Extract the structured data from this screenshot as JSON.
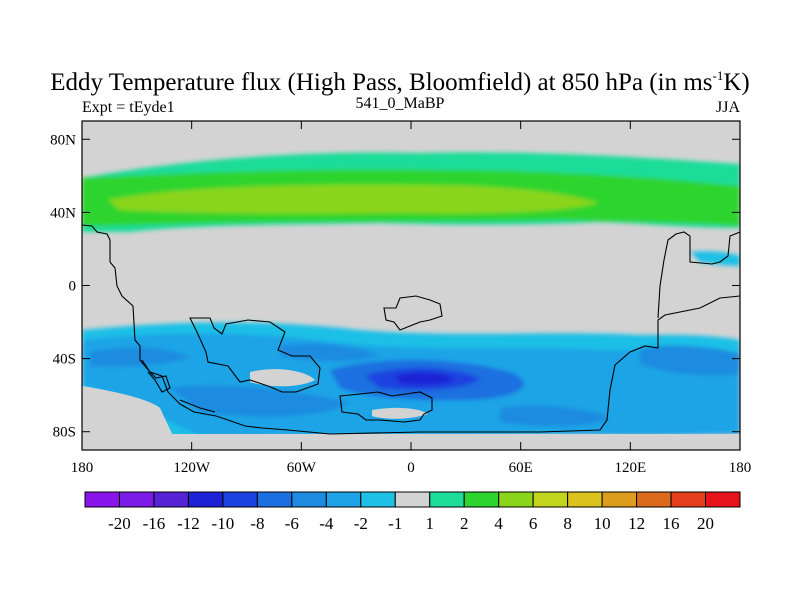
{
  "title": {
    "main": "Eddy Temperature flux (High Pass, Bloomfield) at 850 hPa (in ms",
    "sup": "-1",
    "end": "K)"
  },
  "subtitle": {
    "left": "Expt = tEyde1",
    "center": "541_0_MaBP",
    "right": "JJA"
  },
  "map": {
    "projection": "cylindrical equidistant",
    "lon_range": [
      -180,
      180
    ],
    "lat_range": [
      -90,
      90
    ],
    "x_ticks": [
      {
        "lon": -180,
        "label": "180"
      },
      {
        "lon": -120,
        "label": "120W"
      },
      {
        "lon": -60,
        "label": "60W"
      },
      {
        "lon": 0,
        "label": "0"
      },
      {
        "lon": 60,
        "label": "60E"
      },
      {
        "lon": 120,
        "label": "120E"
      },
      {
        "lon": 180,
        "label": "180"
      }
    ],
    "y_ticks": [
      {
        "lat": 80,
        "label": "80N"
      },
      {
        "lat": 40,
        "label": "40N"
      },
      {
        "lat": 0,
        "label": "0"
      },
      {
        "lat": -40,
        "label": "40S"
      },
      {
        "lat": -80,
        "label": "80S"
      }
    ],
    "land_color": "#d3d3d3"
  },
  "colorbar": {
    "labels": [
      "-20",
      "-16",
      "-12",
      "-10",
      "-8",
      "-6",
      "-4",
      "-2",
      "-1",
      "1",
      "2",
      "4",
      "6",
      "8",
      "10",
      "12",
      "16",
      "20"
    ],
    "colors": [
      "#8a15ea",
      "#7c1be8",
      "#5722d6",
      "#1e22d6",
      "#1b43e0",
      "#1b6fe0",
      "#1e8be0",
      "#1ea4e6",
      "#1ec0e6",
      "#d3d3d3",
      "#1edc9a",
      "#2ed42e",
      "#8ad51c",
      "#c2d51c",
      "#dcc21c",
      "#dc9c1c",
      "#dc6a1c",
      "#e4401c",
      "#e8141c"
    ]
  }
}
